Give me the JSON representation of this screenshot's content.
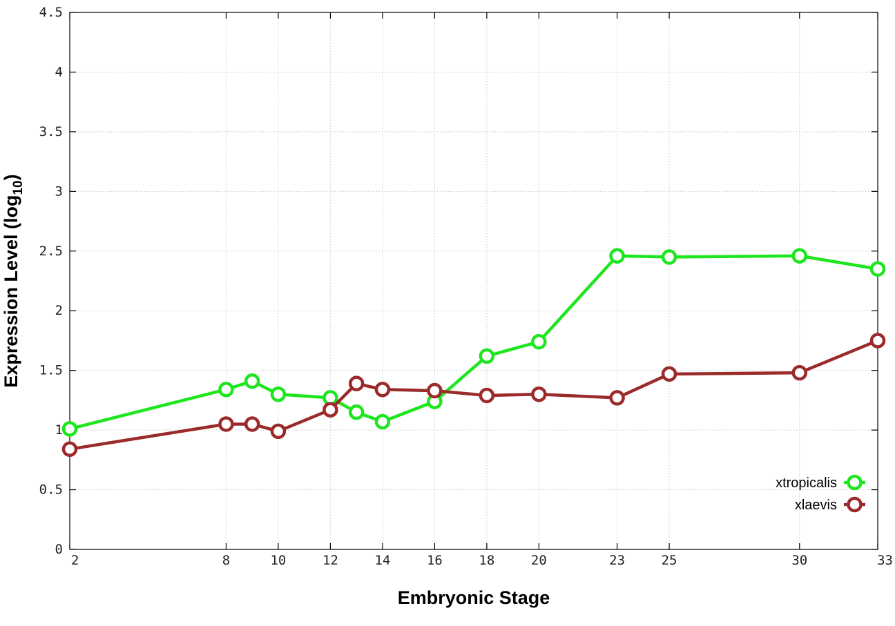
{
  "chart_data": {
    "type": "line",
    "xlabel": "Embryonic Stage",
    "ylabel_main": "Expression Level (log",
    "ylabel_sub": "10",
    "ylabel_close": ")",
    "xlim": [
      2,
      33
    ],
    "ylim": [
      0,
      4.5
    ],
    "x_ticks": [
      2,
      8,
      10,
      12,
      14,
      16,
      18,
      20,
      23,
      25,
      30,
      33
    ],
    "x_tick_labels": [
      "2",
      "8",
      "10",
      "12",
      "14",
      "16",
      "18",
      "20",
      "23",
      "25",
      "30",
      "33"
    ],
    "y_ticks": [
      0,
      0.5,
      1,
      1.5,
      2,
      2.5,
      3,
      3.5,
      4,
      4.5
    ],
    "y_tick_labels": [
      "0",
      "0.5",
      "1",
      "1.5",
      "2",
      "2.5",
      "3",
      "3.5",
      "4",
      "4.5"
    ],
    "grid": true,
    "legend_position": "bottom-right",
    "series": [
      {
        "name": "xtropicalis",
        "color": "#1ee61e",
        "points": [
          [
            2,
            1.01
          ],
          [
            8,
            1.34
          ],
          [
            9,
            1.41
          ],
          [
            10,
            1.3
          ],
          [
            12,
            1.27
          ],
          [
            13,
            1.15
          ],
          [
            14,
            1.07
          ],
          [
            16,
            1.24
          ],
          [
            18,
            1.62
          ],
          [
            20,
            1.74
          ],
          [
            23,
            2.46
          ],
          [
            25,
            2.45
          ],
          [
            30,
            2.46
          ],
          [
            33,
            2.35
          ]
        ]
      },
      {
        "name": "xlaevis",
        "color": "#9b2a2a",
        "points": [
          [
            2,
            0.84
          ],
          [
            8,
            1.05
          ],
          [
            9,
            1.05
          ],
          [
            10,
            0.99
          ],
          [
            12,
            1.17
          ],
          [
            13,
            1.39
          ],
          [
            14,
            1.34
          ],
          [
            16,
            1.33
          ],
          [
            18,
            1.29
          ],
          [
            20,
            1.3
          ],
          [
            23,
            1.27
          ],
          [
            25,
            1.47
          ],
          [
            30,
            1.48
          ],
          [
            33,
            1.75
          ]
        ]
      }
    ]
  }
}
